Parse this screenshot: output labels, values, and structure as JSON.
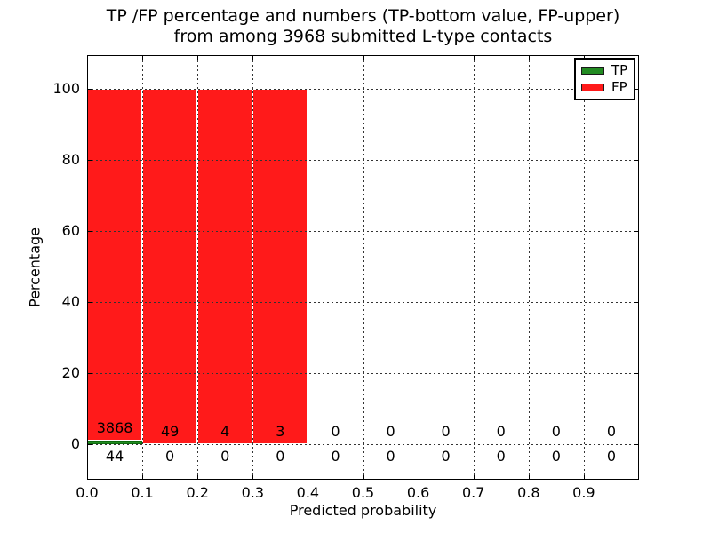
{
  "title": {
    "line1": "TP /FP percentage and numbers (TP-bottom value, FP-upper)",
    "line2": "from among 3968 submitted L-type contacts"
  },
  "axes": {
    "xlabel": "Predicted probability",
    "ylabel": "Percentage"
  },
  "chart_data": {
    "type": "bar",
    "stacked": true,
    "normalization": "percent within each probability bin (TP bottom, FP stacked above)",
    "title": "TP /FP percentage and numbers (TP-bottom value, FP-upper)\nfrom among 3968 submitted L-type contacts",
    "xlabel": "Predicted probability",
    "ylabel": "Percentage",
    "total_contacts": 3968,
    "xlim": [
      0.0,
      1.0
    ],
    "ylim": [
      -10,
      110
    ],
    "x_tick_labels": [
      "0.0",
      "0.1",
      "0.2",
      "0.3",
      "0.4",
      "0.5",
      "0.6",
      "0.7",
      "0.8",
      "0.9"
    ],
    "y_tick_values": [
      0,
      20,
      40,
      60,
      80,
      100
    ],
    "grid_style": "dotted",
    "legend_position": "upper right",
    "bin_edges": [
      0.0,
      0.1,
      0.2,
      0.3,
      0.4,
      0.5,
      0.6,
      0.7,
      0.8,
      0.9,
      1.0
    ],
    "series": [
      {
        "name": "TP",
        "color": "#228B22",
        "edge_color": "#0e6b0e",
        "counts": [
          44,
          0,
          0,
          0,
          0,
          0,
          0,
          0,
          0,
          0
        ]
      },
      {
        "name": "FP",
        "color": "#ff1a1a",
        "edge_color": "#ffffff",
        "counts": [
          3868,
          49,
          4,
          3,
          0,
          0,
          0,
          0,
          0,
          0
        ]
      }
    ]
  }
}
